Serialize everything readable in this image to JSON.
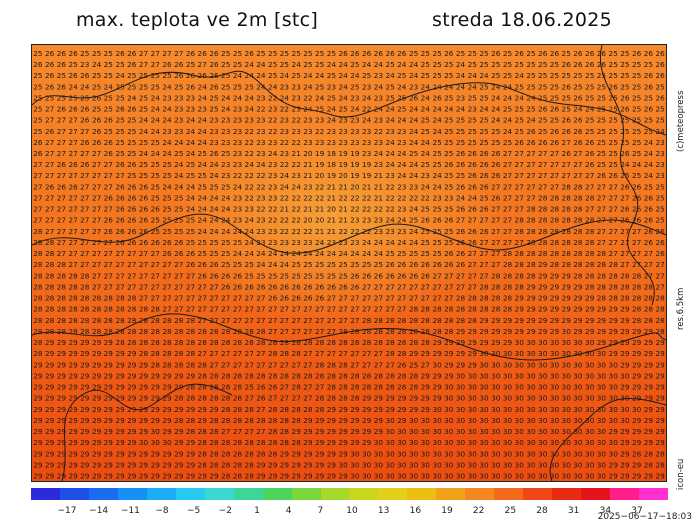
{
  "title_left": "max. teplota ve 2m [stc]",
  "title_right": "streda 18.06.2025",
  "credit": "(c)meteopress",
  "resolution": "res.6.5km",
  "model": "icon-eu",
  "timestamp": "2025−06−17−18:03",
  "legend": {
    "ticks": [
      "−17",
      "−14",
      "−11",
      "−8",
      "−5",
      "−2",
      "1",
      "4",
      "7",
      "10",
      "13",
      "16",
      "19",
      "22",
      "25",
      "28",
      "31",
      "34",
      "37"
    ],
    "colors": [
      "#2b2bdc",
      "#1f4fe6",
      "#1b6cf0",
      "#1590f4",
      "#19aef6",
      "#26c9f0",
      "#3ad8d0",
      "#3dd69a",
      "#4dd45a",
      "#7ad63a",
      "#a6d82c",
      "#c9d61f",
      "#e2cf1a",
      "#eebd14",
      "#f2a21a",
      "#f4871f",
      "#f36a1c",
      "#ef4717",
      "#e92a12",
      "#e5131c",
      "#ff1e8a",
      "#ff2fd2"
    ],
    "colors_important": {
      "cold": "#2b2bdc",
      "warm": "#f4871f",
      "hot": "#ff2fd2"
    }
  },
  "map": {
    "rows": [
      "25 26 26 26 25 25 25 26 26 27 27 27 27 26 26 26 25 25 26 25 25 25 25 25 25 25 26 26 26 26 26 26 25 25 25 26 25 25 25 26 25 26 25 26 26 25 26 26 26 25 25 26 26 26",
      "26 26 26 25 23 24 25 25 26 27 27 26 26 25 27 26 25 25 24 24 25 25 24 25 25 24 24 25 24 24 25 24 24 25 25 25 24 25 25 25 25 25 25 25 25 26 26 26 26 25 25 25 25 26",
      "25 26 25 26 26 25 25 24 25 25 25 25 26 26 26 26 25 24 24 24 25 24 25 24 24 25 24 24 25 23 24 25 24 25 25 25 24 24 24 25 25 24 25 25 25 25 25 25 25 25 25 25 26 26",
      "25 26 26 24 24 25 24 25 25 25 25 24 25 26 24 26 25 25 25 24 24 23 23 24 25 23 24 25 23 24 25 24 23 24 24 24 24 24 25 24 24 25 25 25 25 26 25 25 25 26 25 25 26 25",
      "25 25 25 25 25 26 25 25 24 25 24 23 23 23 24 25 24 24 24 23 22 24 23 22 24 25 24 23 24 23 25 25 26 24 26 25 23 25 25 24 24 24 24 25 25 25 26 25 25 25 26 25 25 26",
      "25 27 26 26 26 25 25 26 26 25 24 24 23 23 23 25 24 23 24 22 23 22 23 24 25 24 25 24 22 24 24 25 24 24 24 24 24 23 24 24 25 25 25 26 26 25 24 24 25 25 26 25 26 25",
      "25 27 27 27 26 26 26 25 25 24 24 24 23 24 24 23 23 23 23 23 22 23 22 23 23 24 23 23 24 23 24 24 24 25 24 25 25 25 25 24 24 25 24 25 25 26 26 25 25 25 25 25 25 25",
      "25 26 27 27 27 26 25 25 25 24 24 23 23 24 24 23 23 23 22 23 22 23 23 23 22 23 23 23 23 22 23 23 24 25 24 25 25 25 25 25 24 25 26 25 26 26 26 25 25 25 25 25 25 24",
      "26 27 27 27 26 26 26 25 25 25 25 24 24 24 24 23 23 23 22 23 23 22 22 23 23 23 23 23 23 23 24 23 24 24 25 25 25 25 25 25 25 26 26 26 26 27 26 26 25 25 25 25 24 23",
      "26 27 27 27 27 27 26 25 25 24 24 24 25 24 25 26 25 23 22 23 24 23 21 20 19 18 19 19 23 24 24 24 25 24 25 25 26 26 26 26 27 27 27 27 27 26 27 26 25 25 26 25 24 23",
      "27 27 26 26 26 27 27 26 26 25 25 25 24 25 24 24 23 23 24 24 23 22 22 21 19 18 19 19 19 23 24 24 24 25 25 26 26 26 26 26 27 27 27 27 27 27 27 26 25 25 24 24 24 23",
      "27 27 27 27 27 27 27 27 25 25 25 25 24 25 25 24 23 22 22 22 23 24 23 21 20 19 20 19 19 21 23 24 24 23 24 25 25 26 26 26 27 27 27 27 27 27 27 27 26 26 25 25 24 23",
      "27 26 26 26 27 27 27 26 26 26 25 24 24 24 25 25 25 24 22 22 23 24 24 23 22 21 21 20 21 21 22 23 23 24 24 25 26 26 26 27 27 27 27 27 27 28 28 27 27 27 26 26 25 25",
      "27 27 27 27 27 27 26 26 26 26 25 25 25 24 24 24 24 23 22 23 23 22 22 22 22 21 22 22 22 21 22 22 22 22 23 23 24 24 25 26 27 27 27 28 28 28 28 28 27 27 27 26 26 25",
      "27 27 27 27 27 27 27 26 26 26 26 25 25 24 24 24 24 23 23 22 22 21 22 21 21 20 21 22 22 22 22 23 24 25 25 25 26 26 26 27 27 27 28 28 28 28 28 27 27 27 26 26 26 25",
      "27 27 27 27 27 27 26 26 26 26 25 25 25 25 24 24 24 23 24 23 22 22 22 20 20 21 21 23 23 23 24 24 25 26 26 26 27 27 27 27 27 28 28 28 28 28 28 28 27 27 26 26 26 25",
      "28 27 27 27 27 27 26 26 26 26 25 25 25 25 24 24 24 24 24 23 23 22 22 22 21 21 22 22 22 23 23 23 24 25 25 25 26 26 26 27 27 28 28 28 28 28 28 28 27 27 27 27 26 26",
      "28 28 27 27 27 27 27 26 26 26 26 26 26 25 25 25 25 25 24 23 23 23 23 23 24 23 23 23 24 24 24 24 24 25 25 25 26 26 27 27 27 27 28 28 28 28 28 28 27 27 27 27 26 26",
      "28 28 27 27 27 27 27 27 27 27 27 26 26 26 25 25 25 24 24 24 24 24 24 24 24 24 24 24 24 24 25 25 25 25 25 26 26 27 27 27 28 28 28 28 28 28 28 28 28 27 27 27 27 26",
      "28 28 28 27 27 27 27 27 27 27 27 27 27 26 26 26 25 25 25 24 24 24 25 25 25 25 25 25 25 25 26 26 26 26 26 26 26 27 27 27 28 28 28 29 28 28 28 28 28 28 27 27 27 27",
      "28 28 28 28 28 27 27 27 27 27 27 27 27 27 26 26 26 26 25 25 25 25 25 25 25 25 25 26 26 26 26 26 26 26 27 27 27 27 27 28 28 28 28 29 29 29 28 28 28 28 28 28 27 27",
      "28 28 28 28 28 27 27 27 27 27 27 27 27 27 27 27 26 26 26 26 26 26 26 26 26 26 26 26 27 27 27 27 27 27 27 27 27 27 28 28 28 28 29 29 29 29 29 28 28 28 28 28 28 27",
      "28 28 28 28 28 28 28 28 28 27 27 27 27 27 27 27 27 27 27 27 26 26 26 26 26 27 27 27 27 27 27 27 27 27 27 27 28 28 28 28 28 29 29 29 29 29 29 29 28 28 28 28 28 28",
      "28 28 28 28 28 28 28 28 28 28 28 27 27 27 27 27 27 27 27 27 27 27 27 27 27 27 27 27 27 27 27 27 28 28 28 28 28 28 28 28 28 29 29 29 29 29 29 29 29 29 29 28 28 28",
      "28 28 28 28 28 28 28 28 28 28 28 28 28 28 27 27 27 27 27 27 27 27 27 27 27 27 27 27 28 28 28 28 28 28 28 28 28 28 29 29 29 29 29 29 29 29 29 29 29 29 29 28 28 28",
      "28 28 28 28 28 28 28 28 28 28 28 28 28 28 28 28 28 28 28 28 27 27 27 27 27 27 28 28 28 28 28 28 28 28 28 28 29 29 29 29 29 29 29 29 29 30 29 29 29 29 29 29 29 28",
      "28 29 29 29 29 29 29 28 28 28 28 28 28 28 28 28 28 28 28 28 28 28 28 28 28 28 28 28 28 28 28 28 28 28 29 29 29 29 29 29 29 30 30 30 30 30 30 30 29 29 29 29 29 29",
      "28 29 29 29 29 29 29 29 29 28 28 28 28 28 27 27 27 27 27 27 28 28 28 27 27 27 27 27 27 27 28 28 29 29 29 29 29 29 30 30 30 30 30 30 30 30 30 30 30 29 29 29 29 29",
      "29 29 29 29 29 29 29 29 29 29 28 28 28 28 28 27 27 27 27 27 27 27 27 27 28 28 28 27 27 27 27 26 25 27 30 29 29 29 30 30 30 30 30 30 30 30 30 30 30 30 29 29 29 29",
      "29 29 29 29 29 29 29 29 29 29 29 29 29 29 28 28 28 28 28 28 28 28 28 28 28 28 28 28 28 28 28 28 28 29 29 29 30 30 30 30 30 30 30 30 30 30 30 30 30 30 30 29 29 29",
      "29 29 29 29 29 29 29 29 29 29 29 29 29 28 28 28 28 28 25 26 26 27 28 27 27 28 28 28 28 28 28 28 28 29 29 30 30 30 30 30 30 30 30 30 30 30 30 30 30 30 29 29 29 29",
      "29 29 29 29 29 29 29 29 29 29 29 29 28 28 28 28 28 28 27 26 27 27 27 27 28 28 28 28 29 29 29 29 29 29 29 30 30 30 30 30 30 30 30 30 30 30 30 30 30 30 30 29 29 29",
      "29 29 29 29 29 29 29 29 29 29 29 29 29 29 29 29 28 28 28 27 28 28 28 28 28 29 29 29 29 29 29 29 29 29 30 30 30 30 30 30 30 30 30 30 30 30 30 30 30 30 30 30 29 29",
      "29 29 29 29 29 29 29 29 29 29 29 29 28 28 29 28 28 28 28 28 28 28 28 29 29 29 29 29 29 29 30 29 30 30 30 30 30 30 30 30 30 30 30 30 30 30 30 30 30 30 30 29 29 29",
      "29 29 29 29 29 29 29 29 29 29 30 29 29 28 28 28 27 27 27 27 28 28 29 29 29 29 29 29 29 29 30 30 30 30 30 30 30 30 30 30 30 30 30 30 30 30 30 30 30 29 29 29 29 29",
      "29 29 29 29 29 29 29 29 29 30 30 30 29 29 28 28 28 28 28 28 28 28 28 29 29 29 29 29 29 30 30 30 30 30 30 30 30 30 30 30 30 30 30 30 30 30 30 30 30 30 29 29 29 29",
      "29 29 29 29 29 29 29 29 29 29 29 29 29 29 28 28 28 28 28 28 28 29 29 29 29 29 29 30 30 30 30 30 30 30 30 30 30 30 30 30 30 30 30 30 30 30 30 30 30 30 29 28 28 28",
      "29 29 29 29 29 29 29 29 29 29 29 29 29 29 28 28 28 28 28 29 29 29 29 29 29 29 30 30 30 30 30 30 30 30 30 30 30 30 30 30 30 30 30 30 30 30 30 30 30 29 29 29 28 28",
      "29 29 29 29 29 29 29 29 29 29 29 29 29 29 29 29 28 28 28 29 29 29 29 29 29 29 29 30 30 30 30 30 30 30 30 30 30 30 30 30 30 30 30 30 30 30 30 30 30 29 29 29 29 29"
    ]
  }
}
